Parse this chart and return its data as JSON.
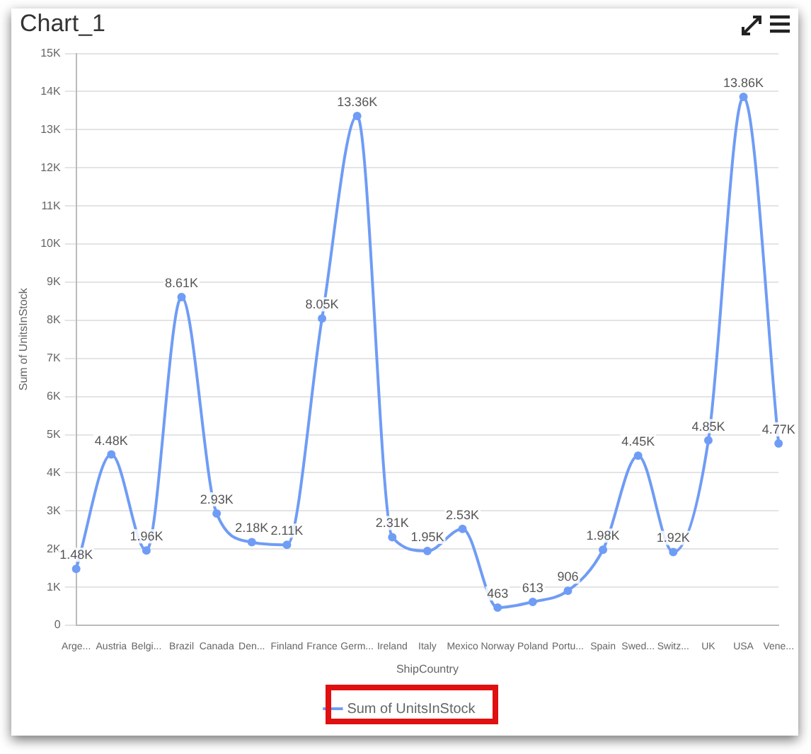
{
  "chart_data": {
    "type": "line",
    "title": "Chart_1",
    "xlabel": "ShipCountry",
    "ylabel": "Sum of UnitsInStock",
    "categories": [
      "Arge...",
      "Austria",
      "Belgi...",
      "Brazil",
      "Canada",
      "Den...",
      "Finland",
      "France",
      "Germ...",
      "Ireland",
      "Italy",
      "Mexico",
      "Norway",
      "Poland",
      "Portu...",
      "Spain",
      "Swed...",
      "Switz...",
      "UK",
      "USA",
      "Vene..."
    ],
    "series": [
      {
        "name": "Sum of UnitsInStock",
        "color": "#6f9cf5",
        "values": [
          1480,
          4480,
          1960,
          8610,
          2930,
          2180,
          2110,
          8050,
          13360,
          2310,
          1950,
          2530,
          463,
          613,
          906,
          1980,
          4450,
          1920,
          4850,
          13860,
          4770
        ],
        "value_labels": [
          "1.48K",
          "4.48K",
          "1.96K",
          "8.61K",
          "2.93K",
          "2.18K",
          "2.11K",
          "8.05K",
          "13.36K",
          "2.31K",
          "1.95K",
          "2.53K",
          "463",
          "613",
          "906",
          "1.98K",
          "4.45K",
          "1.92K",
          "4.85K",
          "13.86K",
          "4.77K"
        ]
      }
    ],
    "ylim": [
      0,
      15000
    ],
    "yticks": [
      0,
      {
        "value": 1000,
        "label": "1K"
      },
      {
        "value": 2000,
        "label": "2K"
      },
      {
        "value": 3000,
        "label": "3K"
      },
      {
        "value": 4000,
        "label": "4K"
      },
      {
        "value": 5000,
        "label": "5K"
      },
      {
        "value": 6000,
        "label": "6K"
      },
      {
        "value": 7000,
        "label": "7K"
      },
      {
        "value": 8000,
        "label": "8K"
      },
      {
        "value": 9000,
        "label": "9K"
      },
      {
        "value": 10000,
        "label": "10K"
      },
      {
        "value": 11000,
        "label": "11K"
      },
      {
        "value": 12000,
        "label": "12K"
      },
      {
        "value": 13000,
        "label": "13K"
      },
      {
        "value": 14000,
        "label": "14K"
      },
      {
        "value": 15000,
        "label": "15K"
      }
    ],
    "grid": "y",
    "legend": "bottom",
    "marker": "circle",
    "line_style": "solid"
  }
}
